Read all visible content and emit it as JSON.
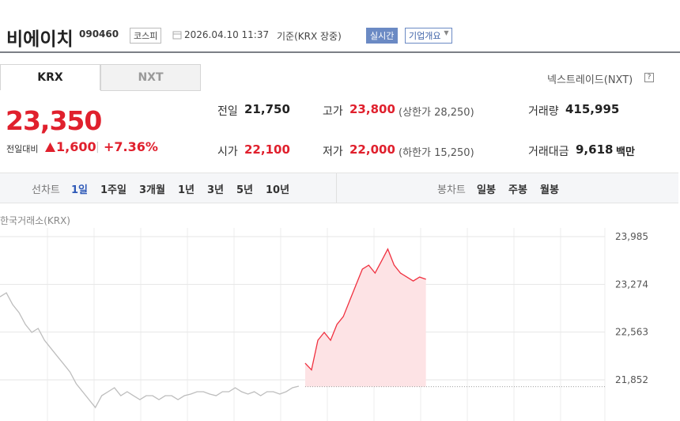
{
  "header": {
    "name": "비에이치",
    "code": "090460",
    "market": "코스피",
    "date": "2026.04.10 11:37",
    "basis": "기준(KRX 장중)",
    "realtime": "실시간",
    "company": "기업개요"
  },
  "tabs": [
    "KRX",
    "NXT"
  ],
  "nxt_link": "넥스트레이드(NXT)",
  "price": {
    "current": "23,350",
    "change_label": "전일대비",
    "change": "1,600",
    "rate": "+7.36%"
  },
  "summary": [
    [
      {
        "label": "전일",
        "value": "21,750"
      },
      {
        "label": "고가",
        "value": "23,800",
        "note": "(상한가 28,250)"
      },
      {
        "label": "거래량",
        "value": "415,995"
      }
    ],
    [
      {
        "label": "시가",
        "value": "22,100"
      },
      {
        "label": "저가",
        "value": "22,000",
        "note": "(하한가 15,250)"
      },
      {
        "label": "거래대금",
        "value": "9,618",
        "unit": "백만"
      }
    ]
  ],
  "periods": {
    "line_label": "선차트",
    "line": [
      "1일",
      "1주일",
      "3개월",
      "1년",
      "3년",
      "5년",
      "10년"
    ],
    "candle_label": "봉차트",
    "candle": [
      "일봉",
      "주봉",
      "월봉"
    ]
  },
  "chart_data": {
    "type": "line",
    "title": "한국거래소(KRX)",
    "ylim": [
      21239,
      24115
    ],
    "yticks": [
      {
        "value": 23985,
        "label": "23,985"
      },
      {
        "value": 23274,
        "label": "23,274"
      },
      {
        "value": 22563,
        "label": "22,563"
      },
      {
        "value": 21852,
        "label": "21,852"
      }
    ],
    "baseline": 21750,
    "grid": true,
    "series": [
      {
        "color": "#bdbdbd",
        "values": [
          23089,
          23148,
          22971,
          22853,
          22677,
          22559,
          22618,
          22441,
          22323,
          22205,
          22088,
          21970,
          21793,
          21675,
          21557,
          21440,
          21616,
          21675,
          21734,
          21616,
          21675,
          21616,
          21557,
          21616,
          21616,
          21557,
          21616,
          21616,
          21557,
          21616,
          21640,
          21675,
          21675,
          21640,
          21616,
          21675,
          21675,
          21734,
          21675,
          21640,
          21675,
          21616,
          21675,
          21675,
          21640,
          21675,
          21734,
          21758,
          null,
          null,
          null,
          null,
          null,
          null,
          null,
          null,
          null,
          null,
          null,
          null,
          null,
          null,
          null,
          null,
          null,
          null,
          null,
          null
        ]
      },
      {
        "color": "#f0303f",
        "fill": "#fde3e5",
        "values": [
          null,
          null,
          null,
          null,
          null,
          null,
          null,
          null,
          null,
          null,
          null,
          null,
          null,
          null,
          null,
          null,
          null,
          null,
          null,
          null,
          null,
          null,
          null,
          null,
          null,
          null,
          null,
          null,
          null,
          null,
          null,
          null,
          null,
          null,
          null,
          null,
          null,
          null,
          null,
          null,
          null,
          null,
          null,
          null,
          null,
          null,
          null,
          null,
          22100,
          22000,
          22441,
          22559,
          22441,
          22677,
          22794,
          23030,
          23266,
          23501,
          23560,
          23442,
          23619,
          23800,
          23560,
          23442,
          23383,
          23324,
          23383,
          23350
        ]
      }
    ]
  }
}
